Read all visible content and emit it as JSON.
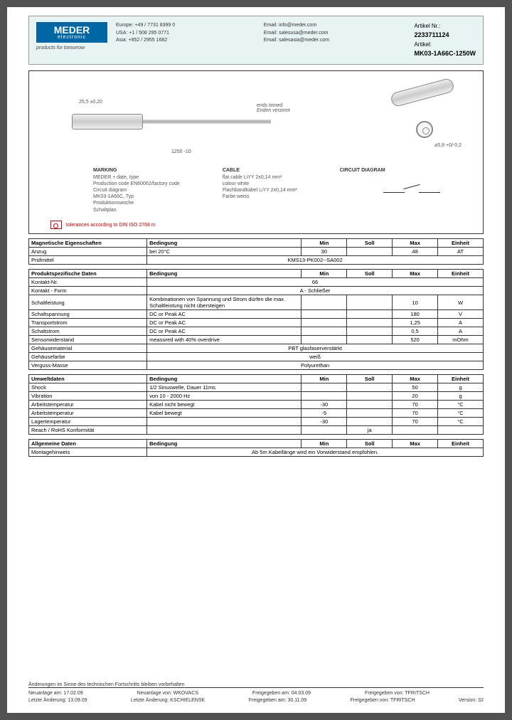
{
  "header": {
    "logo_main": "MEDER",
    "logo_sub": "electronic",
    "tagline": "products for tomorrow",
    "contacts_region": [
      "Europe: +49 / 7731 8399 0",
      "USA: +1 / 508 295 0771",
      "Asia: +852 / 2955 1682"
    ],
    "contacts_email": [
      "Email: info@meder.com",
      "Email: salesusa@meder.com",
      "Email: salesasia@meder.com"
    ],
    "artikel_nr_label": "Artikel Nr.:",
    "artikel_nr": "2233711124",
    "artikel_label": "Artikel:",
    "artikel": "MK03-1A66C-1250W"
  },
  "diagram": {
    "dim_len": "25,5 ±0,20",
    "dim_cable": "1250 -10",
    "ends": "ends tinned",
    "ends_sub": "Enden verzinnt",
    "dim_dia": "⌀5,8 +0/-0,2",
    "marking_h": "MARKING",
    "marking_t": "MEDER + date, type\nProduction code EN60062/factory code\nCircuit diagram\nMK03-1A66C, Typ\nProduktionswoche\nSchaltplan",
    "cable_h": "CABLE",
    "cable_t": "flat cable LiYY 2x0,14 mm²\ncolour white\nFlachbandkabel LiYY 2x0,14 mm²\nFarbe weiss",
    "circuit_h": "CIRCUIT DIAGRAM",
    "tolerance": "tolerances according to DIN ISO 2768 m"
  },
  "tables": {
    "headers": [
      "Bedingung",
      "Min",
      "Soll",
      "Max",
      "Einheit"
    ],
    "mag": {
      "title": "Magnetische Eigenschaften",
      "rows": [
        {
          "label": "Anzug",
          "cond": "bei 20°C",
          "min": "30",
          "soll": "",
          "max": "48",
          "unit": "AT"
        },
        {
          "label": "Prüfmittel",
          "span": "KMS13-PK002--SA002"
        }
      ]
    },
    "prod": {
      "title": "Produktspezifische Daten",
      "rows": [
        {
          "label": "Kontakt-Nr.",
          "span": "66"
        },
        {
          "label": "Kontakt - Form",
          "span": "A - Schließer"
        },
        {
          "label": "Schaltleistung",
          "cond": "Kombinationen von Spannung und Strom dürfen die max. Schaltleistung nicht übersteigen",
          "min": "",
          "soll": "",
          "max": "10",
          "unit": "W"
        },
        {
          "label": "Schaltspannung",
          "cond": "DC or Peak AC",
          "min": "",
          "soll": "",
          "max": "180",
          "unit": "V"
        },
        {
          "label": "Transportstrom",
          "cond": "DC or Peak AC",
          "min": "",
          "soll": "",
          "max": "1,25",
          "unit": "A"
        },
        {
          "label": "Schaltstrom",
          "cond": "DC or Peak AC",
          "min": "",
          "soll": "",
          "max": "0,5",
          "unit": "A"
        },
        {
          "label": "Sensorwiderstand",
          "cond": "measured with 40% overdrive",
          "min": "",
          "soll": "",
          "max": "520",
          "unit": "mOhm"
        },
        {
          "label": "Gehäusematerial",
          "span": "PBT glasfaserverstärkt"
        },
        {
          "label": "Gehäusefarbe",
          "span": "weiß"
        },
        {
          "label": "Verguss-Masse",
          "span": "Polyurethan"
        }
      ]
    },
    "env": {
      "title": "Umweltdaten",
      "rows": [
        {
          "label": "Shock",
          "cond": "1/2 Sinuswelle, Dauer 11ms",
          "min": "",
          "soll": "",
          "max": "50",
          "unit": "g"
        },
        {
          "label": "Vibration",
          "cond": "von 10 - 2000 Hz",
          "min": "",
          "soll": "",
          "max": "20",
          "unit": "g"
        },
        {
          "label": "Arbeitstemperatur",
          "cond": "Kabel nicht bewegt",
          "min": "-30",
          "soll": "",
          "max": "70",
          "unit": "°C"
        },
        {
          "label": "Arbeitstemperatur",
          "cond": "Kabel bewegt",
          "min": "-5",
          "soll": "",
          "max": "70",
          "unit": "°C"
        },
        {
          "label": "Lagertemperatur",
          "cond": "",
          "min": "-30",
          "soll": "",
          "max": "70",
          "unit": "°C"
        },
        {
          "label": "Reach / RoHS Konformität",
          "cond": "",
          "min": "",
          "soll": "ja",
          "max": "",
          "unit": ""
        }
      ]
    },
    "gen": {
      "title": "Allgemeine Daten",
      "rows": [
        {
          "label": "Montagehinweis",
          "span": "Ab 5m Kabellänge wird ein Vorwiderstand empfohlen."
        }
      ]
    }
  },
  "footer": {
    "disclaimer": "Änderungen im Sinne des technischen Fortschritts bleiben vorbehalten",
    "row1_a": "Neuanlage am: 17.02.09",
    "row1_b": "Neuanlage von: WKOVACS",
    "row1_c": "Freigegeben am: 04.03.09",
    "row1_d": "Freigegeben von: TFRITSCH",
    "row2_a": "Letzte Änderung: 13.09.09",
    "row2_b": "Letzte Änderung: KSCHIELENSK",
    "row2_c": "Freigegeben am: 30.11.09",
    "row2_d": "Freigegeben von: TFRITSCH",
    "version": "Version: 32"
  }
}
